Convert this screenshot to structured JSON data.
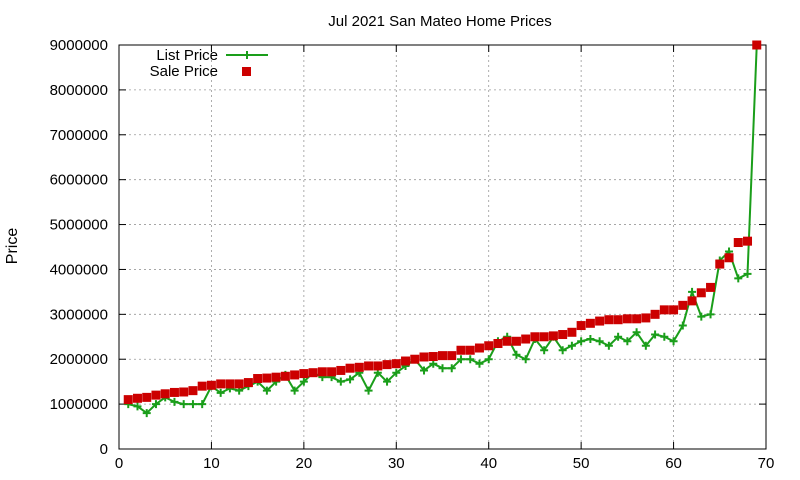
{
  "chart_data": {
    "type": "line",
    "title": "Jul 2021 San Mateo Home Prices",
    "xlabel": "",
    "ylabel": "Price",
    "xlim": [
      0,
      70
    ],
    "ylim": [
      0,
      9000000
    ],
    "xticks": [
      0,
      10,
      20,
      30,
      40,
      50,
      60,
      70
    ],
    "xtick_labels": [
      "0",
      "10",
      "20",
      "30",
      "40",
      "50",
      "60",
      "70"
    ],
    "yticks": [
      0,
      1000000,
      2000000,
      3000000,
      4000000,
      5000000,
      6000000,
      7000000,
      8000000,
      9000000
    ],
    "ytick_labels": [
      "0",
      "1000000",
      "2000000",
      "3000000",
      "4000000",
      "5000000",
      "6000000",
      "7000000",
      "8000000",
      "9000000"
    ],
    "grid": true,
    "legend_position": "top-left",
    "x": [
      1,
      2,
      3,
      4,
      5,
      6,
      7,
      8,
      9,
      10,
      11,
      12,
      13,
      14,
      15,
      16,
      17,
      18,
      19,
      20,
      21,
      22,
      23,
      24,
      25,
      26,
      27,
      28,
      29,
      30,
      31,
      32,
      33,
      34,
      35,
      36,
      37,
      38,
      39,
      40,
      41,
      42,
      43,
      44,
      45,
      46,
      47,
      48,
      49,
      50,
      51,
      52,
      53,
      54,
      55,
      56,
      57,
      58,
      59,
      60,
      61,
      62,
      63,
      64,
      65,
      66,
      67,
      68,
      69
    ],
    "series": [
      {
        "name": "List Price",
        "style": "linespoints",
        "marker": "plus",
        "color": "#1a9e1a",
        "values": [
          1000000,
          950000,
          800000,
          1000000,
          1150000,
          1050000,
          1000000,
          1000000,
          1000000,
          1400000,
          1250000,
          1350000,
          1300000,
          1400000,
          1500000,
          1300000,
          1500000,
          1650000,
          1300000,
          1500000,
          1700000,
          1600000,
          1600000,
          1500000,
          1550000,
          1700000,
          1300000,
          1700000,
          1500000,
          1700000,
          1850000,
          2000000,
          1750000,
          1900000,
          1800000,
          1800000,
          2000000,
          2000000,
          1900000,
          2000000,
          2400000,
          2500000,
          2100000,
          2000000,
          2450000,
          2200000,
          2500000,
          2200000,
          2300000,
          2400000,
          2450000,
          2400000,
          2300000,
          2500000,
          2400000,
          2600000,
          2300000,
          2550000,
          2500000,
          2400000,
          2750000,
          3500000,
          2950000,
          3000000,
          4200000,
          4400000,
          3800000,
          3900000,
          9000000
        ]
      },
      {
        "name": "Sale Price",
        "style": "points",
        "marker": "square",
        "color": "#cc0000",
        "values": [
          1100000,
          1130000,
          1150000,
          1200000,
          1230000,
          1260000,
          1270000,
          1300000,
          1400000,
          1420000,
          1450000,
          1450000,
          1450000,
          1480000,
          1570000,
          1580000,
          1600000,
          1620000,
          1650000,
          1680000,
          1700000,
          1720000,
          1720000,
          1750000,
          1800000,
          1820000,
          1850000,
          1850000,
          1880000,
          1900000,
          1960000,
          2000000,
          2050000,
          2060000,
          2080000,
          2080000,
          2200000,
          2200000,
          2250000,
          2300000,
          2350000,
          2400000,
          2400000,
          2450000,
          2500000,
          2500000,
          2520000,
          2550000,
          2600000,
          2750000,
          2800000,
          2850000,
          2880000,
          2880000,
          2900000,
          2900000,
          2920000,
          3000000,
          3100000,
          3100000,
          3200000,
          3300000,
          3480000,
          3600000,
          4120000,
          4260000,
          4600000,
          4630000,
          9000000
        ]
      }
    ]
  }
}
